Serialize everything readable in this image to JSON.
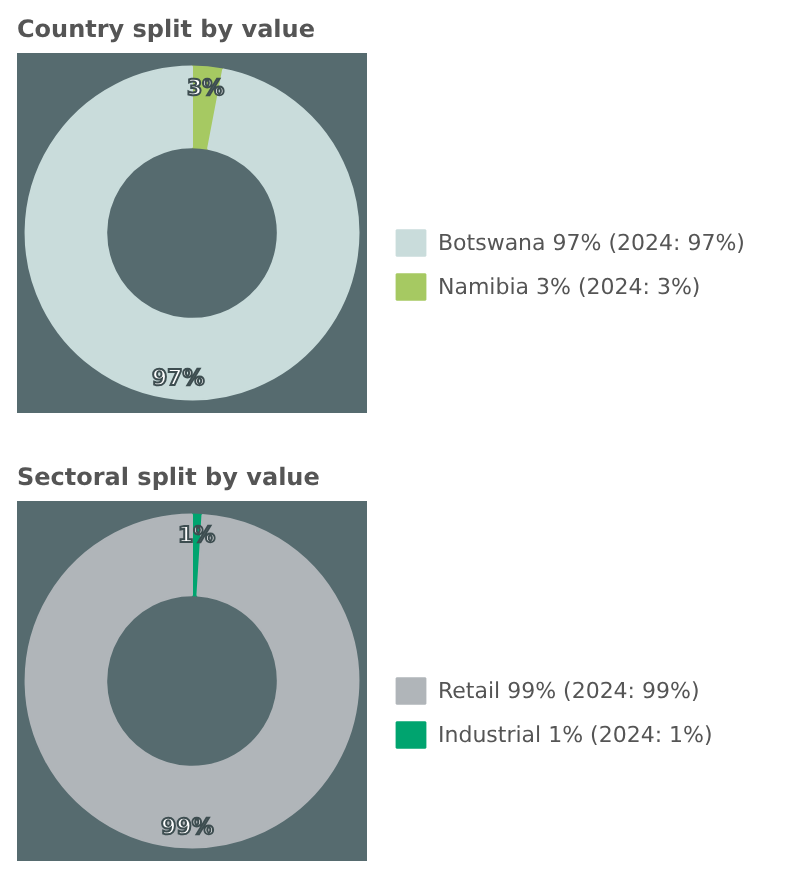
{
  "chart_data": [
    {
      "type": "donut",
      "title": "Country split by value",
      "categories": [
        "Botswana 97% (2024: 97%)",
        "Namibia 3% (2024: 3%)"
      ],
      "values": [
        97,
        3
      ],
      "colors": [
        "#c9dcdb",
        "#a6c962"
      ],
      "value_labels": [
        "97%",
        "3%"
      ],
      "legend": "right"
    },
    {
      "type": "donut",
      "title": "Sectoral split by value",
      "categories": [
        "Retail 99% (2024: 99%)",
        "Industrial 1% (2024: 1%)"
      ],
      "values": [
        99,
        1
      ],
      "colors": [
        "#b0b5b9",
        "#00a46f"
      ],
      "value_labels": [
        "99%",
        "1%"
      ],
      "legend": "right"
    }
  ]
}
